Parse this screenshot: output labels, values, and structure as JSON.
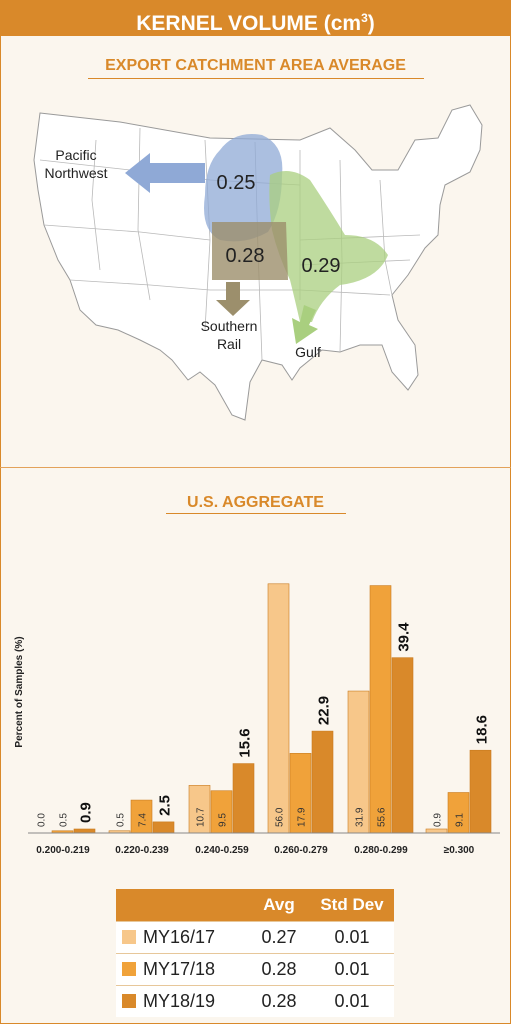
{
  "header": {
    "title": "KERNEL VOLUME (cm",
    "unit_sup": "3",
    "title_end": ")"
  },
  "map": {
    "title": "EXPORT CATCHMENT AREA AVERAGE",
    "regions": [
      {
        "name": "Pacific Northwest",
        "value": "0.25",
        "color": "#8fa9d6"
      },
      {
        "name": "Southern Rail",
        "value": "0.28",
        "color": "#9c8f6c"
      },
      {
        "name": "Gulf",
        "value": "0.29",
        "color": "#a9cf7f"
      }
    ],
    "labels": {
      "pnw_line1": "Pacific",
      "pnw_line2": "Northwest",
      "sr_line1": "Southern",
      "sr_line2": "Rail",
      "gulf": "Gulf"
    }
  },
  "chart_data": {
    "type": "bar",
    "title": "U.S. AGGREGATE",
    "ylabel": "Percent of Samples (%)",
    "ylim": [
      0,
      60
    ],
    "categories": [
      "0.200-0.219",
      "0.220-0.239",
      "0.240-0.259",
      "0.260-0.279",
      "0.280-0.299",
      "≥0.300"
    ],
    "series": [
      {
        "name": "MY16/17",
        "color": "#f7c78a",
        "values": [
          0.0,
          0.5,
          10.7,
          56.0,
          31.9,
          0.9
        ]
      },
      {
        "name": "MY17/18",
        "color": "#f0a23a",
        "values": [
          0.5,
          7.4,
          9.5,
          17.9,
          55.6,
          9.1
        ]
      },
      {
        "name": "MY18/19",
        "color": "#d9892a",
        "values": [
          0.9,
          2.5,
          15.6,
          22.9,
          39.4,
          18.6
        ]
      }
    ]
  },
  "legend": {
    "headers": [
      "",
      "Avg",
      "Std Dev"
    ],
    "rows": [
      {
        "name": "MY16/17",
        "avg": "0.27",
        "std": "0.01",
        "color": "#f7c78a"
      },
      {
        "name": "MY17/18",
        "avg": "0.28",
        "std": "0.01",
        "color": "#f0a23a"
      },
      {
        "name": "MY18/19",
        "avg": "0.28",
        "std": "0.01",
        "color": "#d9892a"
      }
    ]
  }
}
